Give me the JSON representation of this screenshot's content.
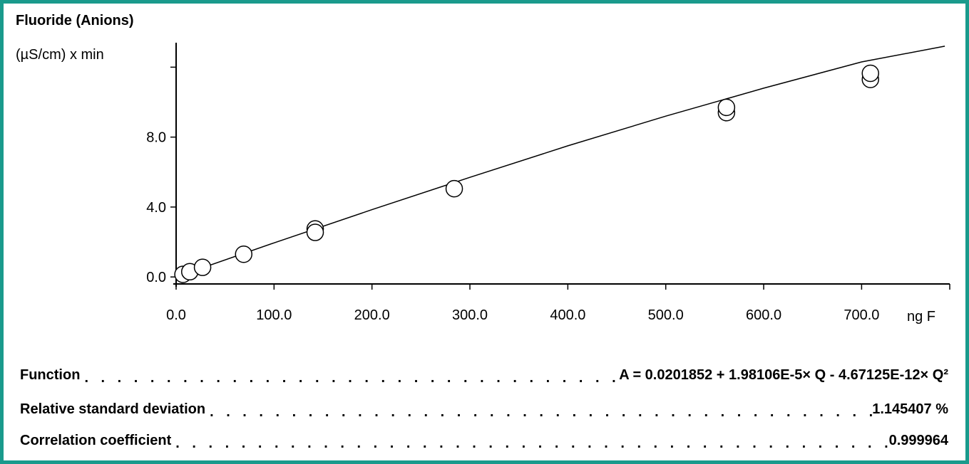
{
  "title": "Fluoride (Anions)",
  "chart_data": {
    "type": "scatter",
    "title": "Fluoride (Anions)",
    "ylabel": "(µS/cm) x min",
    "xlabel": "ng F",
    "xlim": [
      0,
      790
    ],
    "ylim": [
      -0.4,
      13.4
    ],
    "x_ticks": [
      0,
      100,
      200,
      300,
      400,
      500,
      600,
      700
    ],
    "x_tick_labels": [
      "0.0",
      "100.0",
      "200.0",
      "300.0",
      "400.0",
      "500.0",
      "600.0",
      "700.0"
    ],
    "y_ticks": [
      0,
      4,
      8,
      12
    ],
    "y_tick_labels": [
      "0.0",
      "4.0",
      "8.0",
      ""
    ],
    "grid": false,
    "series": [
      {
        "points": [
          [
            7,
            0.15
          ],
          [
            14,
            0.3
          ],
          [
            27,
            0.55
          ],
          [
            69,
            1.3
          ],
          [
            142,
            2.75
          ],
          [
            142,
            2.55
          ],
          [
            284,
            5.05
          ],
          [
            562,
            9.4
          ],
          [
            562,
            9.7
          ],
          [
            709,
            11.3
          ],
          [
            709,
            11.65
          ]
        ]
      }
    ],
    "fit_curve": {
      "x": [
        0,
        100,
        200,
        300,
        400,
        500,
        600,
        700,
        785
      ],
      "y": [
        0.0,
        1.95,
        3.85,
        5.7,
        7.5,
        9.2,
        10.8,
        12.3,
        13.2
      ]
    }
  },
  "info": [
    {
      "label": "Function",
      "value": "A = 0.0201852 + 1.98106E-5× Q - 4.67125E-12× Q²"
    },
    {
      "label": "Relative standard deviation",
      "value": "1.145407 %"
    },
    {
      "label": "Correlation coefficient",
      "value": "0.999964"
    }
  ],
  "colors": {
    "frame": "#1a9a8c",
    "marker_fill": "#ffffff",
    "ink": "#000000"
  }
}
